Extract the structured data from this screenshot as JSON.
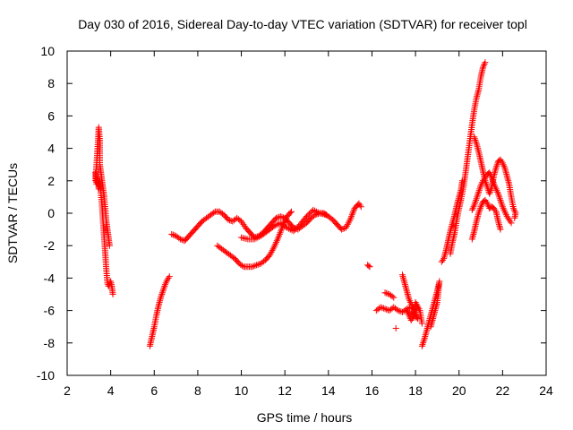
{
  "chart_data": {
    "type": "scatter",
    "title": "Day 030 of 2016, Sidereal Day-to-day VTEC variation (SDTVAR) for receiver topl",
    "xlabel": "GPS time / hours",
    "ylabel": "SDTVAR / TECUs",
    "xlim": [
      2,
      24
    ],
    "ylim": [
      -10,
      10
    ],
    "xticks": [
      2,
      4,
      6,
      8,
      10,
      12,
      14,
      16,
      18,
      20,
      22,
      24
    ],
    "yticks": [
      -10,
      -8,
      -6,
      -4,
      -2,
      0,
      2,
      4,
      6,
      8,
      10
    ],
    "grid": false,
    "marker": "+",
    "color": "#ff0000",
    "series": [
      {
        "name": "SDTVAR",
        "segments": [
          [
            [
              3.3,
              2.0
            ],
            [
              3.35,
              3.0
            ],
            [
              3.4,
              4.0
            ],
            [
              3.45,
              5.3
            ],
            [
              3.5,
              4.5
            ],
            [
              3.5,
              3.0
            ],
            [
              3.55,
              2.5
            ],
            [
              3.6,
              2.0
            ],
            [
              3.65,
              1.5
            ],
            [
              3.7,
              1.0
            ],
            [
              3.75,
              0.3
            ],
            [
              3.8,
              -0.5
            ],
            [
              3.85,
              -1.0
            ],
            [
              3.9,
              -1.5
            ],
            [
              3.95,
              -2.0
            ]
          ],
          [
            [
              3.3,
              2.5
            ],
            [
              3.35,
              1.8
            ],
            [
              3.4,
              2.2
            ],
            [
              3.45,
              1.5
            ],
            [
              3.5,
              2.0
            ],
            [
              3.55,
              1.2
            ],
            [
              3.6,
              0.5
            ],
            [
              3.65,
              -0.5
            ],
            [
              3.7,
              -1.5
            ],
            [
              3.75,
              -2.5
            ],
            [
              3.8,
              -3.5
            ],
            [
              3.85,
              -4.3
            ],
            [
              3.9,
              -4.5
            ],
            [
              4.0,
              -4.2
            ],
            [
              4.05,
              -4.5
            ],
            [
              4.1,
              -5.0
            ]
          ],
          [
            [
              5.8,
              -8.2
            ],
            [
              5.9,
              -7.6
            ],
            [
              6.0,
              -7.0
            ],
            [
              6.1,
              -6.3
            ],
            [
              6.2,
              -5.7
            ],
            [
              6.3,
              -5.2
            ],
            [
              6.4,
              -4.8
            ],
            [
              6.5,
              -4.4
            ],
            [
              6.6,
              -4.1
            ],
            [
              6.7,
              -3.9
            ]
          ],
          [
            [
              6.8,
              -1.3
            ],
            [
              7.0,
              -1.4
            ],
            [
              7.2,
              -1.6
            ],
            [
              7.4,
              -1.7
            ],
            [
              7.6,
              -1.4
            ],
            [
              7.8,
              -1.1
            ],
            [
              8.0,
              -0.8
            ],
            [
              8.2,
              -0.5
            ],
            [
              8.4,
              -0.3
            ],
            [
              8.6,
              -0.1
            ],
            [
              8.8,
              0.1
            ],
            [
              9.0,
              0.1
            ],
            [
              9.2,
              -0.1
            ],
            [
              9.4,
              -0.4
            ],
            [
              9.6,
              -0.5
            ],
            [
              9.8,
              -0.3
            ],
            [
              10.0,
              -0.5
            ],
            [
              10.2,
              -0.9
            ],
            [
              10.4,
              -1.2
            ],
            [
              10.6,
              -1.5
            ],
            [
              10.8,
              -1.4
            ],
            [
              11.0,
              -1.2
            ],
            [
              11.2,
              -0.9
            ],
            [
              11.4,
              -0.6
            ],
            [
              11.6,
              -0.3
            ],
            [
              11.8,
              -0.2
            ],
            [
              12.0,
              -0.3
            ],
            [
              12.2,
              -0.6
            ],
            [
              12.4,
              -0.9
            ],
            [
              12.6,
              -1.0
            ],
            [
              12.8,
              -0.8
            ],
            [
              13.0,
              -0.6
            ],
            [
              13.2,
              -0.3
            ],
            [
              13.4,
              -0.1
            ],
            [
              13.6,
              0.0
            ],
            [
              13.8,
              0.0
            ],
            [
              14.0,
              -0.2
            ],
            [
              14.2,
              -0.4
            ],
            [
              14.4,
              -0.7
            ],
            [
              14.6,
              -1.0
            ],
            [
              14.8,
              -0.9
            ],
            [
              15.0,
              -0.4
            ],
            [
              15.2,
              0.3
            ],
            [
              15.4,
              0.6
            ],
            [
              15.5,
              0.4
            ]
          ],
          [
            [
              8.9,
              -2.0
            ],
            [
              9.1,
              -2.2
            ],
            [
              9.3,
              -2.4
            ],
            [
              9.5,
              -2.6
            ],
            [
              9.7,
              -2.8
            ],
            [
              9.9,
              -3.1
            ],
            [
              10.1,
              -3.3
            ],
            [
              10.3,
              -3.3
            ],
            [
              10.5,
              -3.3
            ],
            [
              10.7,
              -3.2
            ],
            [
              10.9,
              -3.1
            ],
            [
              11.1,
              -2.9
            ],
            [
              11.3,
              -2.6
            ],
            [
              11.5,
              -2.1
            ],
            [
              11.7,
              -1.5
            ],
            [
              11.9,
              -0.8
            ],
            [
              12.1,
              -0.2
            ],
            [
              12.3,
              0.1
            ]
          ],
          [
            [
              10.0,
              -1.5
            ],
            [
              10.3,
              -1.6
            ],
            [
              10.6,
              -1.6
            ],
            [
              10.9,
              -1.4
            ],
            [
              11.2,
              -1.1
            ],
            [
              11.5,
              -0.8
            ],
            [
              11.8,
              -0.6
            ],
            [
              12.1,
              -0.9
            ],
            [
              12.4,
              -1.1
            ],
            [
              12.7,
              -0.7
            ],
            [
              13.0,
              -0.2
            ],
            [
              13.3,
              0.2
            ],
            [
              13.6,
              0.0
            ],
            [
              13.9,
              -0.1
            ]
          ],
          [
            [
              15.8,
              -3.2
            ],
            [
              15.9,
              -3.3
            ]
          ],
          [
            [
              16.2,
              -6.0
            ],
            [
              16.4,
              -5.8
            ],
            [
              16.6,
              -5.9
            ],
            [
              16.8,
              -6.0
            ],
            [
              17.0,
              -5.8
            ],
            [
              17.2,
              -6.0
            ],
            [
              17.4,
              -6.1
            ],
            [
              17.6,
              -5.9
            ],
            [
              17.8,
              -5.8
            ],
            [
              18.0,
              -6.0
            ]
          ],
          [
            [
              16.6,
              -4.9
            ],
            [
              16.8,
              -5.0
            ],
            [
              17.0,
              -5.2
            ]
          ],
          [
            [
              17.1,
              -7.1
            ]
          ],
          [
            [
              17.4,
              -3.8
            ],
            [
              17.5,
              -4.3
            ],
            [
              17.6,
              -4.8
            ],
            [
              17.7,
              -5.3
            ],
            [
              17.8,
              -5.6
            ],
            [
              17.9,
              -5.8
            ],
            [
              18.0,
              -6.2
            ],
            [
              18.1,
              -6.5
            ],
            [
              17.6,
              -6.0
            ],
            [
              17.7,
              -6.3
            ],
            [
              17.8,
              -6.6
            ],
            [
              17.9,
              -6.4
            ],
            [
              18.0,
              -5.5
            ],
            [
              18.2,
              -6.0
            ],
            [
              18.3,
              -6.8
            ]
          ],
          [
            [
              18.3,
              -8.2
            ],
            [
              18.4,
              -7.8
            ],
            [
              18.5,
              -7.3
            ],
            [
              18.6,
              -6.8
            ],
            [
              18.7,
              -6.3
            ],
            [
              18.8,
              -5.8
            ],
            [
              18.9,
              -5.3
            ],
            [
              19.0,
              -4.8
            ],
            [
              19.1,
              -4.2
            ],
            [
              19.0,
              -5.5
            ],
            [
              18.9,
              -6.0
            ],
            [
              18.8,
              -6.5
            ],
            [
              18.7,
              -7.0
            ]
          ],
          [
            [
              19.2,
              -3.0
            ],
            [
              19.3,
              -2.8
            ],
            [
              19.4,
              -2.3
            ],
            [
              19.5,
              -1.7
            ],
            [
              19.6,
              -1.1
            ],
            [
              19.7,
              -0.6
            ],
            [
              19.8,
              -0.1
            ],
            [
              19.9,
              0.5
            ],
            [
              20.0,
              1.0
            ],
            [
              20.1,
              1.5
            ],
            [
              20.15,
              2.0
            ]
          ],
          [
            [
              19.6,
              -2.5
            ],
            [
              19.7,
              -1.8
            ],
            [
              19.8,
              -1.2
            ],
            [
              19.9,
              -0.4
            ],
            [
              20.0,
              0.3
            ],
            [
              20.1,
              0.9
            ],
            [
              20.2,
              1.6
            ],
            [
              20.3,
              2.5
            ],
            [
              20.4,
              3.5
            ],
            [
              20.5,
              4.5
            ],
            [
              20.6,
              5.5
            ],
            [
              20.7,
              6.4
            ],
            [
              20.8,
              7.1
            ],
            [
              20.9,
              7.6
            ],
            [
              21.0,
              8.4
            ],
            [
              21.1,
              9.0
            ],
            [
              21.2,
              9.3
            ]
          ],
          [
            [
              20.6,
              -1.6
            ],
            [
              20.7,
              -1.1
            ],
            [
              20.8,
              -0.5
            ],
            [
              20.9,
              0.0
            ],
            [
              21.0,
              0.4
            ],
            [
              21.1,
              0.7
            ],
            [
              21.2,
              0.8
            ],
            [
              21.3,
              0.6
            ],
            [
              21.4,
              0.3
            ],
            [
              21.5,
              0.4
            ],
            [
              21.6,
              0.3
            ],
            [
              21.7,
              0.1
            ],
            [
              21.8,
              -0.5
            ],
            [
              21.9,
              -1.0
            ]
          ],
          [
            [
              20.6,
              0.2
            ],
            [
              20.7,
              0.5
            ],
            [
              20.8,
              0.9
            ],
            [
              20.9,
              1.3
            ],
            [
              21.0,
              1.7
            ],
            [
              21.1,
              2.0
            ],
            [
              21.2,
              2.2
            ],
            [
              21.3,
              2.4
            ],
            [
              21.4,
              2.5
            ],
            [
              21.5,
              2.2
            ],
            [
              21.6,
              1.8
            ],
            [
              21.7,
              1.5
            ],
            [
              21.8,
              1.2
            ],
            [
              21.9,
              0.8
            ],
            [
              22.0,
              0.4
            ],
            [
              22.1,
              0.1
            ],
            [
              22.2,
              -0.2
            ],
            [
              22.3,
              -0.4
            ],
            [
              22.4,
              -0.6
            ]
          ],
          [
            [
              20.7,
              4.7
            ],
            [
              20.8,
              4.3
            ],
            [
              20.9,
              3.8
            ],
            [
              21.0,
              3.2
            ],
            [
              21.1,
              2.6
            ],
            [
              21.2,
              2.0
            ],
            [
              21.3,
              1.6
            ],
            [
              21.4,
              1.2
            ],
            [
              21.5,
              1.6
            ],
            [
              21.6,
              2.3
            ],
            [
              21.7,
              2.8
            ],
            [
              21.8,
              3.2
            ],
            [
              21.9,
              3.3
            ],
            [
              22.0,
              3.1
            ],
            [
              22.1,
              2.8
            ],
            [
              22.2,
              2.3
            ],
            [
              22.3,
              1.8
            ],
            [
              22.4,
              1.0
            ],
            [
              22.5,
              0.3
            ],
            [
              22.6,
              0.0
            ],
            [
              22.55,
              -0.3
            ]
          ]
        ]
      }
    ]
  }
}
